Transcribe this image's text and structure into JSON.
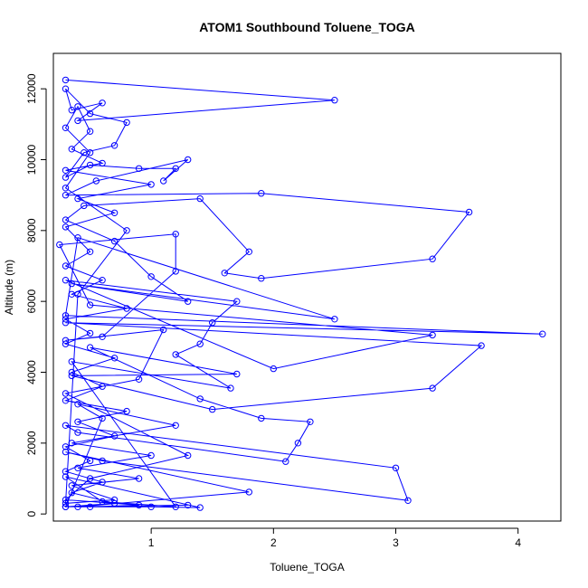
{
  "chart_data": {
    "type": "line",
    "title": "ATOM1 Southbound Toluene_TOGA",
    "xlabel": "Toluene_TOGA",
    "ylabel": "Altitude (m)",
    "xlim": [
      0.2,
      4.35
    ],
    "ylim": [
      -200,
      13000
    ],
    "xticks": [
      1,
      2,
      3,
      4
    ],
    "xtick_labels": [
      "1",
      "2",
      "3",
      "4"
    ],
    "yticks": [
      0,
      2000,
      4000,
      6000,
      8000,
      10000,
      12000
    ],
    "ytick_labels": [
      "0",
      "2000",
      "4000",
      "6000",
      "8000",
      "10000",
      "12000"
    ],
    "grid": false,
    "markers": "open-circle",
    "series": [
      {
        "color": "#0000ff",
        "points": [
          [
            0.3,
            12250
          ],
          [
            2.5,
            11680
          ],
          [
            0.4,
            11100
          ],
          [
            0.6,
            11600
          ],
          [
            0.35,
            11400
          ],
          [
            0.3,
            12000
          ],
          [
            0.5,
            11300
          ],
          [
            0.8,
            11050
          ],
          [
            0.7,
            10400
          ],
          [
            0.45,
            10200
          ],
          [
            0.3,
            9500
          ],
          [
            0.5,
            9850
          ],
          [
            0.9,
            9750
          ],
          [
            1.2,
            9750
          ],
          [
            1.1,
            9400
          ],
          [
            1.3,
            10000
          ],
          [
            0.55,
            9400
          ],
          [
            0.3,
            9000
          ],
          [
            1.9,
            9050
          ],
          [
            3.6,
            8520
          ],
          [
            3.3,
            7200
          ],
          [
            1.9,
            6650
          ],
          [
            1.6,
            6800
          ],
          [
            1.8,
            7400
          ],
          [
            1.4,
            8900
          ],
          [
            0.45,
            8700
          ],
          [
            0.3,
            8300
          ],
          [
            0.7,
            7700
          ],
          [
            1.0,
            6700
          ],
          [
            1.3,
            6000
          ],
          [
            0.35,
            6500
          ],
          [
            2.5,
            5500
          ],
          [
            0.4,
            7800
          ],
          [
            0.3,
            5600
          ],
          [
            4.2,
            5080
          ],
          [
            0.3,
            5400
          ],
          [
            3.7,
            4750
          ],
          [
            3.3,
            3550
          ],
          [
            1.5,
            2950
          ],
          [
            0.35,
            3900
          ],
          [
            1.7,
            3950
          ],
          [
            0.5,
            4700
          ],
          [
            1.4,
            3250
          ],
          [
            1.9,
            2700
          ],
          [
            2.3,
            2600
          ],
          [
            2.2,
            2000
          ],
          [
            2.1,
            1480
          ],
          [
            0.4,
            2300
          ],
          [
            0.3,
            2500
          ],
          [
            3.0,
            1300
          ],
          [
            3.1,
            380
          ],
          [
            0.6,
            1500
          ],
          [
            0.3,
            1750
          ],
          [
            1.8,
            620
          ],
          [
            0.4,
            200
          ],
          [
            1.0,
            200
          ],
          [
            1.4,
            180
          ],
          [
            0.3,
            1050
          ],
          [
            0.6,
            350
          ],
          [
            1.2,
            200
          ],
          [
            0.35,
            4300
          ],
          [
            1.65,
            3550
          ],
          [
            1.2,
            4500
          ],
          [
            1.4,
            4800
          ],
          [
            1.5,
            5400
          ],
          [
            1.7,
            6000
          ],
          [
            0.3,
            6600
          ],
          [
            2.0,
            4100
          ],
          [
            3.3,
            5050
          ],
          [
            0.5,
            5900
          ],
          [
            0.25,
            7600
          ],
          [
            1.2,
            7900
          ],
          [
            1.2,
            6850
          ],
          [
            0.6,
            5000
          ],
          [
            0.3,
            4900
          ],
          [
            1.1,
            5200
          ],
          [
            0.9,
            3800
          ],
          [
            0.3,
            3400
          ],
          [
            1.3,
            1650
          ],
          [
            0.5,
            1000
          ],
          [
            0.3,
            400
          ],
          [
            0.9,
            250
          ],
          [
            0.5,
            200
          ],
          [
            1.3,
            250
          ],
          [
            0.3,
            200
          ],
          [
            0.6,
            2700
          ],
          [
            0.4,
            3100
          ],
          [
            1.2,
            2500
          ],
          [
            0.35,
            2000
          ],
          [
            1.0,
            1650
          ],
          [
            0.4,
            1300
          ],
          [
            0.9,
            1000
          ],
          [
            0.35,
            800
          ],
          [
            0.7,
            400
          ],
          [
            0.3,
            300
          ],
          [
            0.4,
            6200
          ],
          [
            0.8,
            8000
          ],
          [
            0.3,
            9200
          ],
          [
            0.5,
            10200
          ],
          [
            0.3,
            10900
          ],
          [
            0.4,
            11500
          ],
          [
            0.5,
            10800
          ],
          [
            0.35,
            10300
          ],
          [
            0.6,
            9900
          ],
          [
            0.3,
            9700
          ],
          [
            1.0,
            9300
          ],
          [
            0.4,
            8900
          ],
          [
            0.7,
            8500
          ],
          [
            0.3,
            8100
          ],
          [
            0.5,
            7400
          ],
          [
            0.3,
            7000
          ],
          [
            0.6,
            6600
          ],
          [
            0.35,
            6200
          ],
          [
            0.8,
            5800
          ],
          [
            0.3,
            5500
          ],
          [
            0.5,
            5100
          ],
          [
            0.3,
            4800
          ],
          [
            0.7,
            4400
          ],
          [
            0.35,
            4000
          ],
          [
            0.6,
            3600
          ],
          [
            0.3,
            3200
          ],
          [
            0.8,
            2900
          ],
          [
            0.4,
            2600
          ],
          [
            0.7,
            2200
          ],
          [
            0.3,
            1900
          ],
          [
            0.5,
            1500
          ],
          [
            0.3,
            1200
          ],
          [
            0.6,
            900
          ],
          [
            0.35,
            600
          ],
          [
            0.7,
            300
          ],
          [
            0.3,
            200
          ]
        ]
      }
    ]
  }
}
